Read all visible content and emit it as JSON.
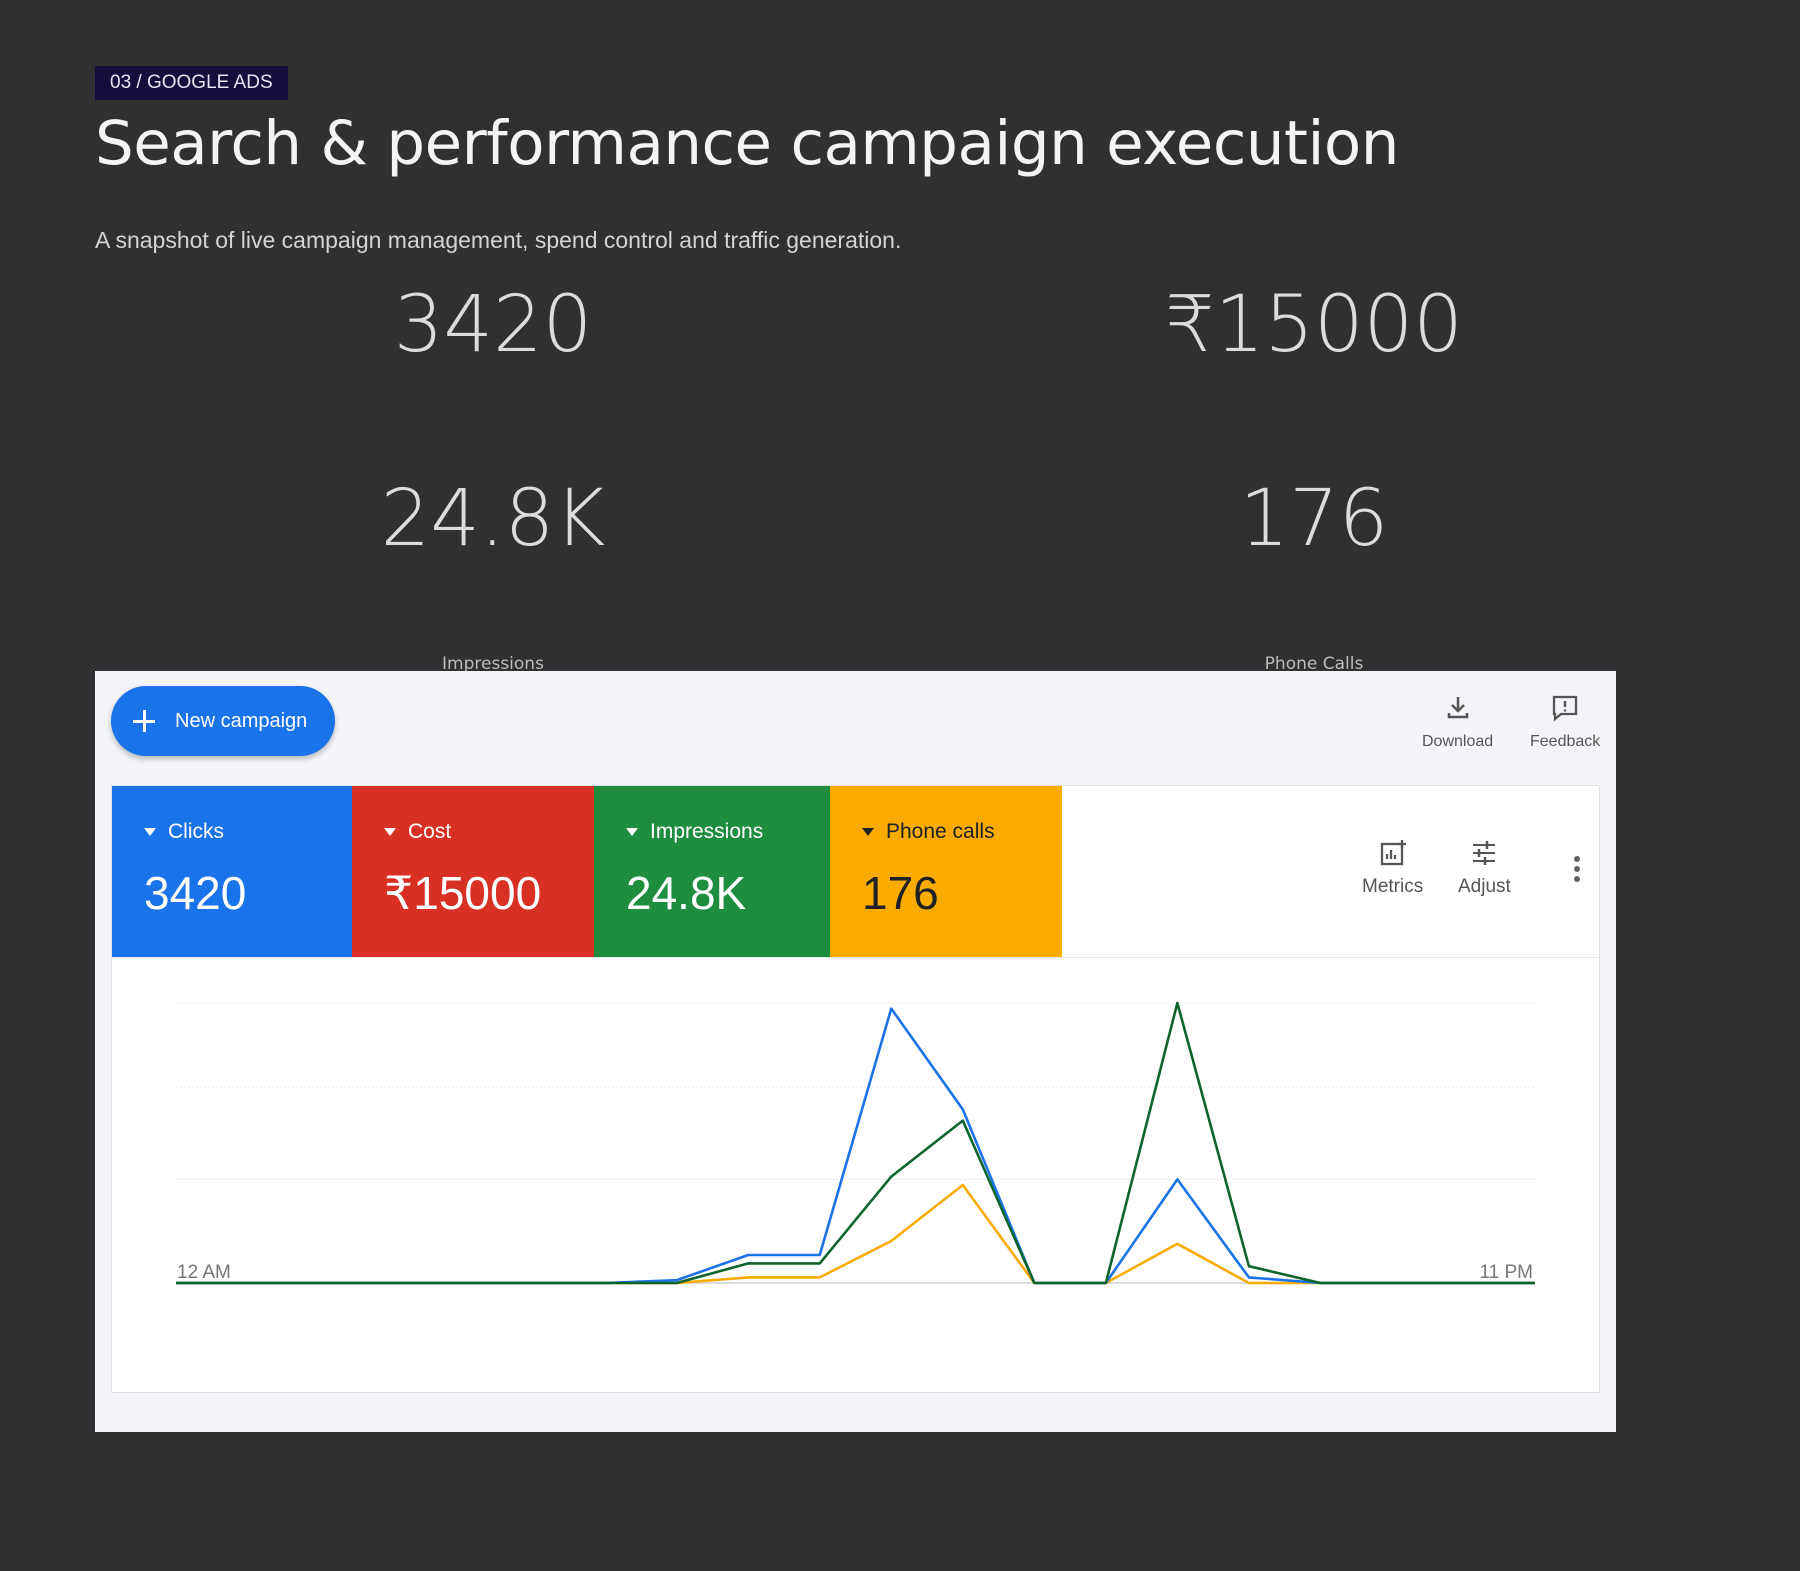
{
  "header": {
    "tag": "03 / GOOGLE ADS",
    "title": "Search & performance campaign execution",
    "subtitle": "A snapshot of live campaign management, spend control and traffic generation."
  },
  "stats": [
    {
      "value": "3420",
      "caption": ""
    },
    {
      "value": "₹15000",
      "caption": ""
    },
    {
      "value": "24.8K",
      "caption": "Impressions"
    },
    {
      "value": "176",
      "caption": "Phone Calls"
    }
  ],
  "panel": {
    "new_campaign_label": "New campaign",
    "download_label": "Download",
    "feedback_label": "Feedback",
    "metrics_label": "Metrics",
    "adjust_label": "Adjust"
  },
  "tiles": [
    {
      "label": "Clicks",
      "value": "3420",
      "color": "#1a73e8"
    },
    {
      "label": "Cost",
      "value": "₹15000",
      "color": "#d93025"
    },
    {
      "label": "Impressions",
      "value": "24.8K",
      "color": "#1e8e3e"
    },
    {
      "label": "Phone calls",
      "value": "176",
      "color": "#f9ab00"
    }
  ],
  "chart_data": {
    "type": "line",
    "x_start_label": "12 AM",
    "x_end_label": "11 PM",
    "x": [
      0,
      1,
      2,
      3,
      4,
      5,
      6,
      7,
      8,
      9,
      10,
      11,
      12,
      13,
      14,
      15,
      16,
      17,
      18,
      19
    ],
    "ylim": [
      0,
      100
    ],
    "grid": true,
    "series": [
      {
        "color": "#1a73e8",
        "values": [
          0,
          0,
          0,
          0,
          0,
          0,
          0,
          1,
          10,
          10,
          98,
          62,
          0,
          0,
          37,
          2,
          0,
          0,
          0,
          0
        ]
      },
      {
        "color": "#0d652d",
        "values": [
          0,
          0,
          0,
          0,
          0,
          0,
          0,
          0,
          7,
          7,
          38,
          58,
          0,
          0,
          100,
          6,
          0,
          0,
          0,
          0
        ]
      },
      {
        "color": "#f9ab00",
        "values": [
          0,
          0,
          0,
          0,
          0,
          0,
          0,
          0,
          2,
          2,
          15,
          35,
          0,
          0,
          14,
          0,
          0,
          0,
          0,
          0
        ]
      }
    ]
  }
}
